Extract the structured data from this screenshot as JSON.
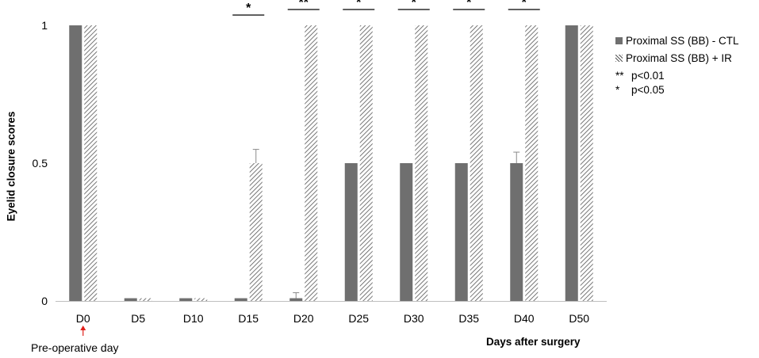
{
  "chart_data": {
    "type": "bar",
    "categories": [
      "D0",
      "D5",
      "D10",
      "D15",
      "D20",
      "D25",
      "D30",
      "D35",
      "D40",
      "D50"
    ],
    "series": [
      {
        "name": "Proximal SS (BB) - CTL",
        "values": [
          1,
          0.01,
          0.01,
          0.01,
          0.01,
          0.5,
          0.5,
          0.5,
          0.5,
          1
        ],
        "errors": [
          0,
          0,
          0,
          0,
          0.02,
          0,
          0,
          0,
          0.04,
          0
        ],
        "color": "#6f6f6f",
        "pattern": "solid"
      },
      {
        "name": "Proximal SS (BB) + IR",
        "values": [
          1,
          0.01,
          0.01,
          0.5,
          1,
          1,
          1,
          1,
          1,
          1
        ],
        "errors": [
          0,
          0,
          0,
          0.05,
          0,
          0,
          0,
          0,
          0,
          0
        ],
        "color": "#555555",
        "pattern": "diagonal-hatch"
      }
    ],
    "xlabel": "Days after surgery",
    "ylabel": "Eyelid closure scores",
    "ylim": [
      0,
      1
    ],
    "yticks": [
      0,
      0.5,
      1
    ],
    "ytick_labels": [
      "0",
      "0.5",
      "1"
    ],
    "grid": false,
    "legend_position": "right",
    "significance": [
      {
        "category": "D15",
        "mark": "*"
      },
      {
        "category": "D20",
        "mark": "**"
      },
      {
        "category": "D25",
        "mark": "*"
      },
      {
        "category": "D30",
        "mark": "*"
      },
      {
        "category": "D35",
        "mark": "*"
      },
      {
        "category": "D40",
        "mark": "*"
      }
    ],
    "annotation": {
      "category": "D0",
      "text": "Pre-operative day",
      "arrow_color": "#e0201b"
    }
  },
  "legend_notes": [
    {
      "symbol": "**",
      "text": "p<0.01"
    },
    {
      "symbol": "*",
      "text": "p<0.05"
    }
  ]
}
